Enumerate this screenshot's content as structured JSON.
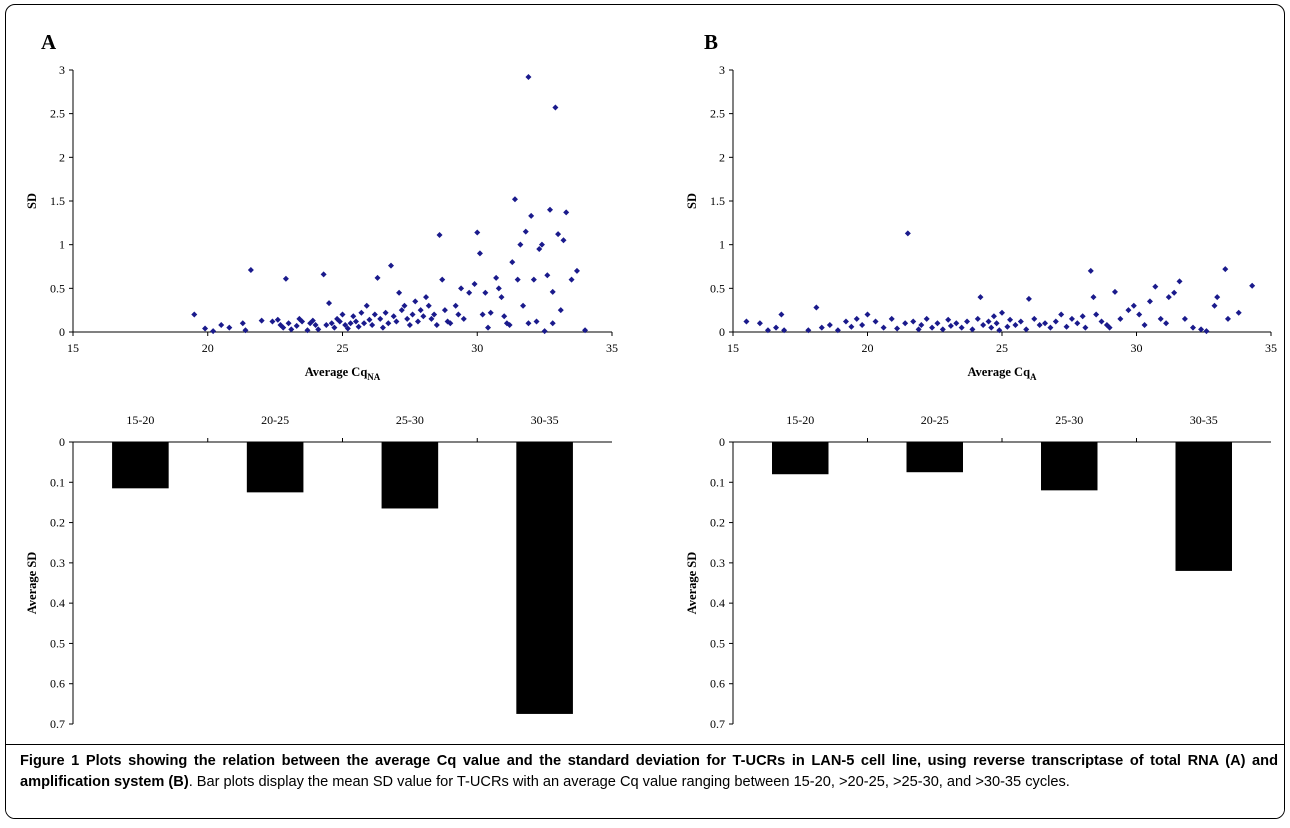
{
  "panels": [
    {
      "letter": "A"
    },
    {
      "letter": "B"
    }
  ],
  "caption": {
    "bold": "Figure 1 Plots showing the relation between the average Cq value and the standard deviation for T-UCRs in LAN-5 cell line, using reverse transcriptase of total RNA (A) and amplification system (B)",
    "normal": ". Bar plots display the mean SD value for T-UCRs with an average Cq value ranging between 15-20, >20-25, >25-30, and >30-35 cycles."
  },
  "chart_data": [
    {
      "type": "scatter",
      "panel": "A",
      "xlabel": "Average Cq",
      "xlabel_sub": "NA",
      "ylabel": "SD",
      "xlim": [
        15,
        35
      ],
      "ylim": [
        0,
        3
      ],
      "x_ticks": [
        "15",
        "20",
        "25",
        "30",
        "35"
      ],
      "y_ticks": [
        "0",
        "0.5",
        "1",
        "1.5",
        "2",
        "2.5",
        "3"
      ],
      "color": "#1a1a8c",
      "points": [
        [
          19.5,
          0.2
        ],
        [
          19.9,
          0.04
        ],
        [
          20.2,
          0.01
        ],
        [
          20.5,
          0.08
        ],
        [
          20.8,
          0.05
        ],
        [
          21.3,
          0.1
        ],
        [
          21.4,
          0.02
        ],
        [
          21.6,
          0.71
        ],
        [
          22.0,
          0.13
        ],
        [
          22.4,
          0.12
        ],
        [
          22.6,
          0.14
        ],
        [
          22.7,
          0.08
        ],
        [
          22.8,
          0.05
        ],
        [
          22.9,
          0.61
        ],
        [
          23.0,
          0.1
        ],
        [
          23.1,
          0.03
        ],
        [
          23.3,
          0.07
        ],
        [
          23.4,
          0.15
        ],
        [
          23.5,
          0.12
        ],
        [
          23.7,
          0.02
        ],
        [
          23.8,
          0.1
        ],
        [
          23.9,
          0.13
        ],
        [
          24.0,
          0.08
        ],
        [
          24.1,
          0.03
        ],
        [
          24.3,
          0.66
        ],
        [
          24.4,
          0.08
        ],
        [
          24.5,
          0.33
        ],
        [
          24.6,
          0.1
        ],
        [
          24.7,
          0.05
        ],
        [
          24.8,
          0.15
        ],
        [
          24.9,
          0.12
        ],
        [
          25.0,
          0.2
        ],
        [
          25.1,
          0.08
        ],
        [
          25.2,
          0.04
        ],
        [
          25.3,
          0.1
        ],
        [
          25.4,
          0.18
        ],
        [
          25.5,
          0.12
        ],
        [
          25.6,
          0.06
        ],
        [
          25.7,
          0.22
        ],
        [
          25.8,
          0.1
        ],
        [
          25.9,
          0.3
        ],
        [
          26.0,
          0.14
        ],
        [
          26.1,
          0.08
        ],
        [
          26.2,
          0.2
        ],
        [
          26.3,
          0.62
        ],
        [
          26.4,
          0.15
        ],
        [
          26.5,
          0.05
        ],
        [
          26.6,
          0.22
        ],
        [
          26.7,
          0.1
        ],
        [
          26.8,
          0.76
        ],
        [
          26.9,
          0.18
        ],
        [
          27.0,
          0.12
        ],
        [
          27.1,
          0.45
        ],
        [
          27.2,
          0.25
        ],
        [
          27.3,
          0.3
        ],
        [
          27.4,
          0.15
        ],
        [
          27.5,
          0.08
        ],
        [
          27.6,
          0.2
        ],
        [
          27.7,
          0.35
        ],
        [
          27.8,
          0.12
        ],
        [
          27.9,
          0.25
        ],
        [
          28.0,
          0.18
        ],
        [
          28.1,
          0.4
        ],
        [
          28.2,
          0.3
        ],
        [
          28.3,
          0.15
        ],
        [
          28.4,
          0.2
        ],
        [
          28.5,
          0.08
        ],
        [
          28.6,
          1.11
        ],
        [
          28.7,
          0.6
        ],
        [
          28.8,
          0.25
        ],
        [
          28.9,
          0.12
        ],
        [
          29.0,
          0.1
        ],
        [
          29.2,
          0.3
        ],
        [
          29.3,
          0.2
        ],
        [
          29.5,
          0.15
        ],
        [
          29.7,
          0.45
        ],
        [
          29.9,
          0.55
        ],
        [
          30.0,
          1.14
        ],
        [
          30.1,
          0.9
        ],
        [
          30.2,
          0.2
        ],
        [
          30.4,
          0.05
        ],
        [
          30.5,
          0.22
        ],
        [
          30.7,
          0.62
        ],
        [
          30.8,
          0.5
        ],
        [
          30.9,
          0.4
        ],
        [
          31.0,
          0.18
        ],
        [
          31.1,
          0.1
        ],
        [
          31.2,
          0.08
        ],
        [
          31.3,
          0.8
        ],
        [
          31.4,
          1.52
        ],
        [
          31.5,
          0.6
        ],
        [
          31.6,
          1.0
        ],
        [
          31.7,
          0.3
        ],
        [
          31.8,
          1.15
        ],
        [
          31.9,
          2.92
        ],
        [
          32.0,
          1.33
        ],
        [
          32.1,
          0.6
        ],
        [
          32.2,
          0.12
        ],
        [
          32.3,
          0.95
        ],
        [
          32.4,
          1.0
        ],
        [
          32.5,
          0.01
        ],
        [
          32.6,
          0.65
        ],
        [
          32.7,
          1.4
        ],
        [
          32.8,
          0.46
        ],
        [
          32.9,
          2.57
        ],
        [
          33.0,
          1.12
        ],
        [
          33.1,
          0.25
        ],
        [
          33.2,
          1.05
        ],
        [
          33.3,
          1.37
        ],
        [
          33.5,
          0.6
        ],
        [
          33.7,
          0.7
        ],
        [
          34.0,
          0.02
        ],
        [
          32.8,
          0.1
        ],
        [
          31.9,
          0.1
        ],
        [
          30.3,
          0.45
        ],
        [
          29.4,
          0.5
        ]
      ]
    },
    {
      "type": "scatter",
      "panel": "B",
      "xlabel": "Average Cq",
      "xlabel_sub": "A",
      "ylabel": "SD",
      "xlim": [
        15,
        35
      ],
      "ylim": [
        0,
        3
      ],
      "x_ticks": [
        "15",
        "20",
        "25",
        "30",
        "35"
      ],
      "y_ticks": [
        "0",
        "0.5",
        "1",
        "1.5",
        "2",
        "2.5",
        "3"
      ],
      "color": "#1a1a8c",
      "points": [
        [
          15.5,
          0.12
        ],
        [
          16.0,
          0.1
        ],
        [
          16.3,
          0.02
        ],
        [
          16.6,
          0.05
        ],
        [
          16.8,
          0.2
        ],
        [
          16.9,
          0.02
        ],
        [
          17.8,
          0.02
        ],
        [
          18.1,
          0.28
        ],
        [
          18.3,
          0.05
        ],
        [
          18.6,
          0.08
        ],
        [
          18.9,
          0.02
        ],
        [
          19.2,
          0.12
        ],
        [
          19.4,
          0.06
        ],
        [
          19.6,
          0.15
        ],
        [
          19.8,
          0.08
        ],
        [
          20.0,
          0.2
        ],
        [
          20.3,
          0.12
        ],
        [
          20.6,
          0.05
        ],
        [
          20.9,
          0.15
        ],
        [
          21.1,
          0.04
        ],
        [
          21.4,
          0.1
        ],
        [
          21.5,
          1.13
        ],
        [
          21.7,
          0.12
        ],
        [
          21.9,
          0.03
        ],
        [
          22.0,
          0.08
        ],
        [
          22.2,
          0.15
        ],
        [
          22.4,
          0.05
        ],
        [
          22.6,
          0.1
        ],
        [
          22.8,
          0.03
        ],
        [
          23.0,
          0.14
        ],
        [
          23.1,
          0.07
        ],
        [
          23.3,
          0.1
        ],
        [
          23.5,
          0.05
        ],
        [
          23.7,
          0.12
        ],
        [
          23.9,
          0.03
        ],
        [
          24.1,
          0.15
        ],
        [
          24.2,
          0.4
        ],
        [
          24.3,
          0.08
        ],
        [
          24.5,
          0.12
        ],
        [
          24.6,
          0.05
        ],
        [
          24.7,
          0.18
        ],
        [
          24.8,
          0.1
        ],
        [
          24.9,
          0.02
        ],
        [
          25.0,
          0.22
        ],
        [
          25.2,
          0.06
        ],
        [
          25.3,
          0.14
        ],
        [
          25.5,
          0.08
        ],
        [
          25.7,
          0.12
        ],
        [
          25.9,
          0.03
        ],
        [
          26.0,
          0.38
        ],
        [
          26.2,
          0.15
        ],
        [
          26.4,
          0.08
        ],
        [
          26.6,
          0.1
        ],
        [
          26.8,
          0.05
        ],
        [
          27.0,
          0.12
        ],
        [
          27.2,
          0.2
        ],
        [
          27.4,
          0.06
        ],
        [
          27.6,
          0.15
        ],
        [
          27.8,
          0.1
        ],
        [
          28.0,
          0.18
        ],
        [
          28.1,
          0.05
        ],
        [
          28.3,
          0.7
        ],
        [
          28.4,
          0.4
        ],
        [
          28.5,
          0.2
        ],
        [
          28.7,
          0.12
        ],
        [
          28.9,
          0.08
        ],
        [
          29.2,
          0.46
        ],
        [
          29.4,
          0.15
        ],
        [
          29.7,
          0.25
        ],
        [
          29.9,
          0.3
        ],
        [
          30.1,
          0.2
        ],
        [
          30.3,
          0.08
        ],
        [
          30.5,
          0.35
        ],
        [
          30.7,
          0.52
        ],
        [
          30.9,
          0.15
        ],
        [
          31.1,
          0.1
        ],
        [
          31.2,
          0.4
        ],
        [
          31.4,
          0.45
        ],
        [
          31.6,
          0.58
        ],
        [
          31.8,
          0.15
        ],
        [
          32.1,
          0.05
        ],
        [
          32.4,
          0.03
        ],
        [
          32.6,
          0.01
        ],
        [
          33.0,
          0.4
        ],
        [
          33.3,
          0.72
        ],
        [
          33.4,
          0.15
        ],
        [
          33.8,
          0.22
        ],
        [
          34.3,
          0.53
        ],
        [
          32.9,
          0.3
        ],
        [
          29.0,
          0.05
        ]
      ]
    },
    {
      "type": "bar",
      "panel": "A",
      "categories": [
        "15-20",
        "20-25",
        "25-30",
        "30-35"
      ],
      "values": [
        0.115,
        0.125,
        0.165,
        0.675
      ],
      "ylabel": "Average SD",
      "ylim": [
        0,
        0.7
      ],
      "y_ticks": [
        "0",
        "0.1",
        "0.2",
        "0.3",
        "0.4",
        "0.5",
        "0.6",
        "0.7"
      ],
      "inverted": true,
      "color": "#000000"
    },
    {
      "type": "bar",
      "panel": "B",
      "categories": [
        "15-20",
        "20-25",
        "25-30",
        "30-35"
      ],
      "values": [
        0.08,
        0.075,
        0.12,
        0.32
      ],
      "ylabel": "Average SD",
      "ylim": [
        0,
        0.7
      ],
      "y_ticks": [
        "0",
        "0.1",
        "0.2",
        "0.3",
        "0.4",
        "0.5",
        "0.6",
        "0.7"
      ],
      "inverted": true,
      "color": "#000000"
    }
  ]
}
